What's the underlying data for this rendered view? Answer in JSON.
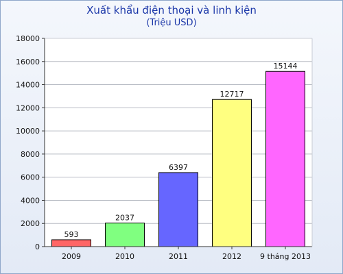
{
  "chart_data": {
    "type": "bar",
    "title": "Xuất khẩu điện thoại và linh kiện",
    "subtitle": "(Triệu USD)",
    "categories": [
      "2009",
      "2010",
      "2011",
      "2012",
      "9 tháng 2013"
    ],
    "values": [
      593,
      2037,
      6397,
      12717,
      15144
    ],
    "data_labels": [
      "593",
      "2037",
      "6397",
      "12717",
      "15144"
    ],
    "colors": [
      "#ff6666",
      "#80ff80",
      "#6666ff",
      "#ffff80",
      "#ff66ff"
    ],
    "ylim": [
      0,
      18000
    ],
    "yticks": [
      0,
      2000,
      4000,
      6000,
      8000,
      10000,
      12000,
      14000,
      16000,
      18000
    ],
    "xlabel": "",
    "ylabel": "",
    "grid": true,
    "legend": "none"
  }
}
